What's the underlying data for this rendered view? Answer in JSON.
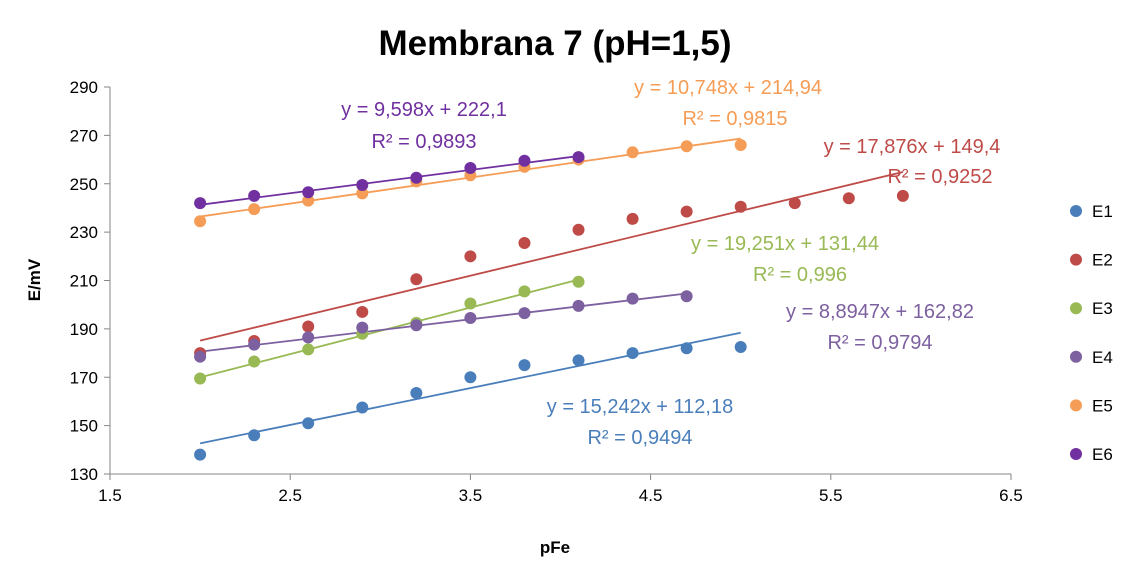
{
  "chart_data": {
    "type": "scatter",
    "title": "Membrana 7 (pH=1,5)",
    "xlabel": "pFe",
    "ylabel": "E/mV",
    "xlim": [
      1.5,
      6.5
    ],
    "ylim": [
      130,
      290
    ],
    "xticks": [
      1.5,
      2.5,
      3.5,
      4.5,
      5.5,
      6.5
    ],
    "xtick_labels": [
      "1.5",
      "2.5",
      "3.5",
      "4.5",
      "5.5",
      "6.5"
    ],
    "yticks": [
      130,
      150,
      170,
      190,
      210,
      230,
      250,
      270,
      290
    ],
    "ytick_labels": [
      "130",
      "150",
      "170",
      "190",
      "210",
      "230",
      "250",
      "270",
      "290"
    ],
    "grid": false,
    "legend": "right",
    "series": [
      {
        "name": "E1",
        "color": "#4a7ebb",
        "x": [
          2.0,
          2.3,
          2.6,
          2.9,
          3.2,
          3.5,
          3.8,
          4.1,
          4.4,
          4.7,
          5.0
        ],
        "y": [
          138,
          146,
          151,
          157.5,
          163.5,
          170,
          175,
          177,
          180,
          182,
          182.5
        ],
        "trendline": {
          "slope": 15.242,
          "intercept": 112.18,
          "x_range": [
            2.0,
            5.0
          ]
        },
        "equation": "y = 15,242x + 112,18",
        "r2": "R² = 0,9494"
      },
      {
        "name": "E2",
        "color": "#be4b48",
        "x": [
          2.0,
          2.3,
          2.6,
          2.9,
          3.2,
          3.5,
          3.8,
          4.1,
          4.4,
          4.7,
          5.0,
          5.3,
          5.6,
          5.9
        ],
        "y": [
          180,
          185,
          191,
          197,
          210.5,
          220,
          225.5,
          231,
          235.5,
          238.5,
          240.5,
          242,
          244,
          245
        ],
        "trendline": {
          "slope": 17.876,
          "intercept": 149.4,
          "x_range": [
            2.0,
            5.9
          ]
        },
        "equation": "y = 17,876x + 149,4",
        "r2": "R² = 0,9252"
      },
      {
        "name": "E3",
        "color": "#98b954",
        "x": [
          2.0,
          2.3,
          2.6,
          2.9,
          3.2,
          3.5,
          3.8,
          4.1
        ],
        "y": [
          169.5,
          176.5,
          181.5,
          188,
          192.5,
          200.5,
          205.5,
          209.5
        ],
        "trendline": {
          "slope": 19.251,
          "intercept": 131.44,
          "x_range": [
            2.0,
            4.1
          ]
        },
        "equation": "y = 19,251x + 131,44",
        "r2": "R² = 0,996"
      },
      {
        "name": "E4",
        "color": "#7d60a0",
        "x": [
          2.0,
          2.3,
          2.6,
          2.9,
          3.2,
          3.5,
          3.8,
          4.1,
          4.4,
          4.7
        ],
        "y": [
          178.5,
          183.5,
          186.5,
          190.5,
          191.5,
          194.5,
          196.5,
          199.5,
          202.5,
          203.5
        ],
        "trendline": {
          "slope": 8.8947,
          "intercept": 162.82,
          "x_range": [
            2.0,
            4.7
          ]
        },
        "equation": "y = 8,8947x + 162,82",
        "r2": "R² = 0,9794"
      },
      {
        "name": "E5",
        "color": "#f59d56",
        "x": [
          2.0,
          2.3,
          2.6,
          2.9,
          3.2,
          3.5,
          3.8,
          4.1,
          4.4,
          4.7,
          5.0
        ],
        "y": [
          234.5,
          239.5,
          243,
          246,
          251,
          253.5,
          257,
          260,
          263,
          265.5,
          266
        ],
        "trendline": {
          "slope": 10.748,
          "intercept": 214.94,
          "x_range": [
            2.0,
            5.0
          ]
        },
        "equation": "y = 10,748x + 214,94",
        "r2": "R² = 0,9815"
      },
      {
        "name": "E6",
        "color": "#7030a0",
        "x": [
          2.0,
          2.3,
          2.6,
          2.9,
          3.2,
          3.5,
          3.8,
          4.1
        ],
        "y": [
          242,
          245,
          246.5,
          249.5,
          252.5,
          256.5,
          259.5,
          261
        ],
        "trendline": {
          "slope": 9.598,
          "intercept": 222.1,
          "x_range": [
            2.0,
            4.1
          ]
        },
        "equation": "y = 9,598x + 222,1",
        "r2": "R² = 0,9893"
      }
    ]
  }
}
